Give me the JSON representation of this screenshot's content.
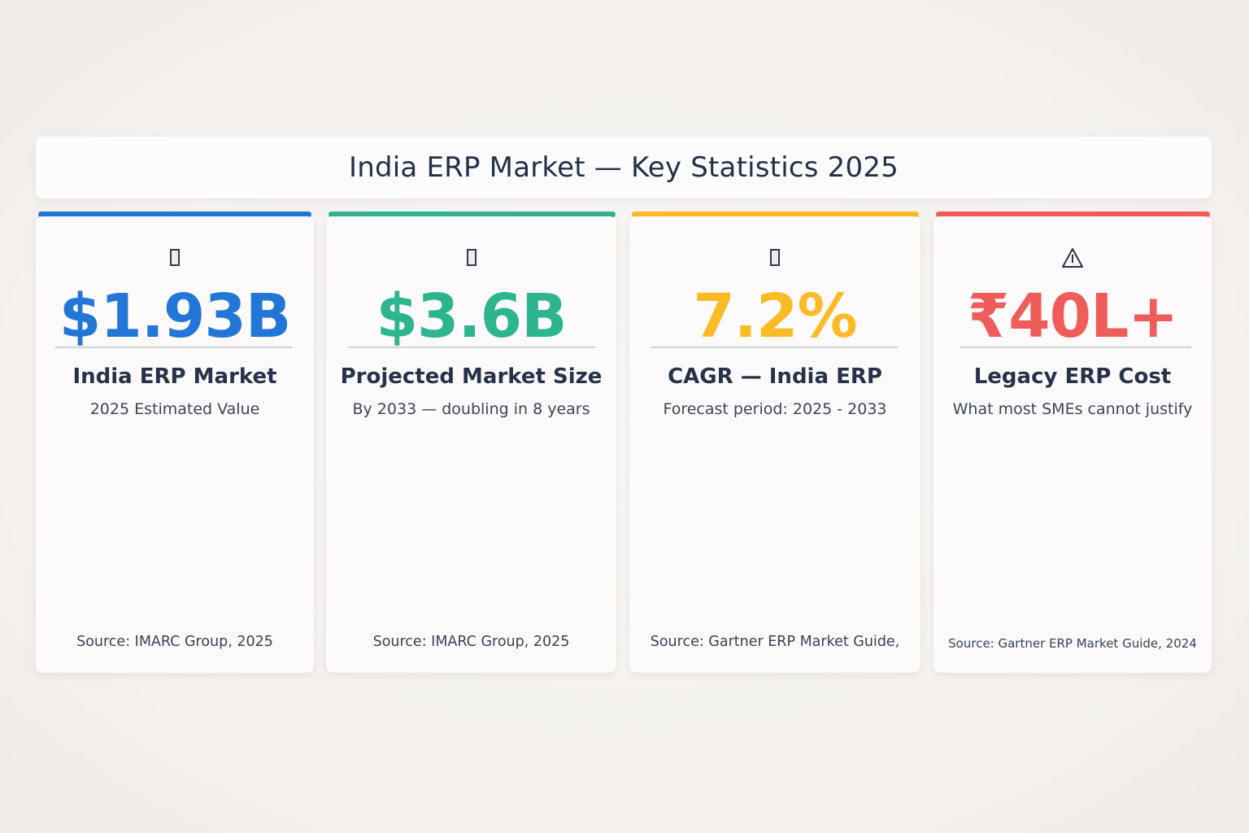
{
  "header": {
    "title": "India ERP Market — Key Statistics 2025"
  },
  "cards": [
    {
      "icon": "missing-glyph-icon",
      "value": "$1.93B",
      "label": "India ERP Market",
      "subtitle": "2025 Estimated Value",
      "source": "Source: IMARC Group, 2025",
      "accent_color": "#2176d6"
    },
    {
      "icon": "missing-glyph-icon",
      "value": "$3.6B",
      "label": "Projected Market Size",
      "subtitle": "By 2033 — doubling in 8 years",
      "source": "Source: IMARC Group, 2025",
      "accent_color": "#2cb58e"
    },
    {
      "icon": "missing-glyph-icon",
      "value": "7.2%",
      "label": "CAGR — India ERP",
      "subtitle": "Forecast period: 2025 - 2033",
      "source": "Source: Gartner ERP Market Guide,",
      "accent_color": "#fbbb26"
    },
    {
      "icon": "warning-icon",
      "value": "₹40L+",
      "label": "Legacy ERP Cost",
      "subtitle": "What most SMEs cannot justify",
      "source": "Source: Gartner ERP Market Guide, 2024",
      "accent_color": "#ee5d5a"
    }
  ]
}
